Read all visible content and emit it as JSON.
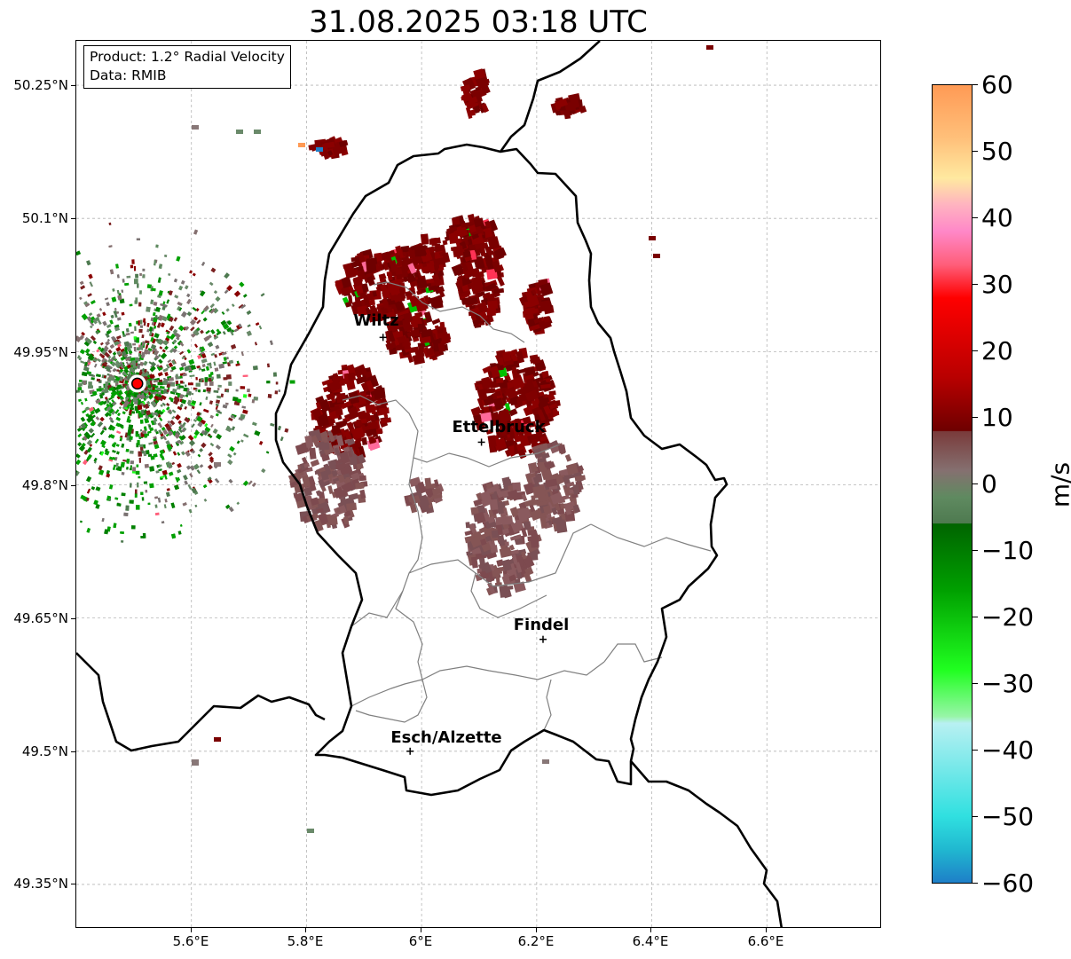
{
  "title": "31.08.2025 03:18 UTC",
  "info": {
    "product": "Product: 1.2° Radial Velocity",
    "data": "Data: RMIB"
  },
  "map": {
    "lat_ticks": [
      "50.25°N",
      "50.1°N",
      "49.95°N",
      "49.8°N",
      "49.65°N",
      "49.5°N",
      "49.35°N"
    ],
    "lon_ticks": [
      "5.6°E",
      "5.8°E",
      "6°E",
      "6.2°E",
      "6.4°E",
      "6.6°E"
    ],
    "extent": {
      "lon_min": 5.4,
      "lon_max": 6.8,
      "lat_min": 49.3,
      "lat_max": 50.3
    },
    "radar_site": {
      "lon": 5.506,
      "lat": 49.914,
      "color": "#ff0000"
    },
    "cities": [
      {
        "name": "Wiltz",
        "lon": 5.933,
        "lat": 49.966
      },
      {
        "name": "Ettelbruck",
        "lon": 6.104,
        "lat": 49.848
      },
      {
        "name": "Findel",
        "lon": 6.211,
        "lat": 49.626
      },
      {
        "name": "Esch/Alzette",
        "lon": 5.98,
        "lat": 49.5
      }
    ]
  },
  "colorbar": {
    "unit": "m/s",
    "min": -60,
    "max": 60,
    "tick_labels": [
      "60",
      "50",
      "40",
      "30",
      "20",
      "10",
      "0",
      "−10",
      "−20",
      "−30",
      "−40",
      "−50",
      "−60"
    ],
    "stops": [
      {
        "v": 60,
        "c": "#ff9a55"
      },
      {
        "v": 52,
        "c": "#ffc07a"
      },
      {
        "v": 46,
        "c": "#ffe9a0"
      },
      {
        "v": 42,
        "c": "#ffb3c0"
      },
      {
        "v": 38,
        "c": "#ff88c8"
      },
      {
        "v": 33,
        "c": "#ff5e7a"
      },
      {
        "v": 28,
        "c": "#ff0000"
      },
      {
        "v": 16,
        "c": "#b80000"
      },
      {
        "v": 8,
        "c": "#6e0000"
      },
      {
        "v": 7.9,
        "c": "#7a3b3b"
      },
      {
        "v": 2,
        "c": "#857070"
      },
      {
        "v": -2,
        "c": "#5f8a60"
      },
      {
        "v": -5.9,
        "c": "#4e7a50"
      },
      {
        "v": -6,
        "c": "#006400"
      },
      {
        "v": -16,
        "c": "#00a000"
      },
      {
        "v": -28,
        "c": "#20ff20"
      },
      {
        "v": -35,
        "c": "#98f5a8"
      },
      {
        "v": -36,
        "c": "#b8f0f2"
      },
      {
        "v": -50,
        "c": "#30e0e0"
      },
      {
        "v": -55,
        "c": "#20b8d0"
      },
      {
        "v": -60,
        "c": "#1e7fc8"
      }
    ]
  }
}
